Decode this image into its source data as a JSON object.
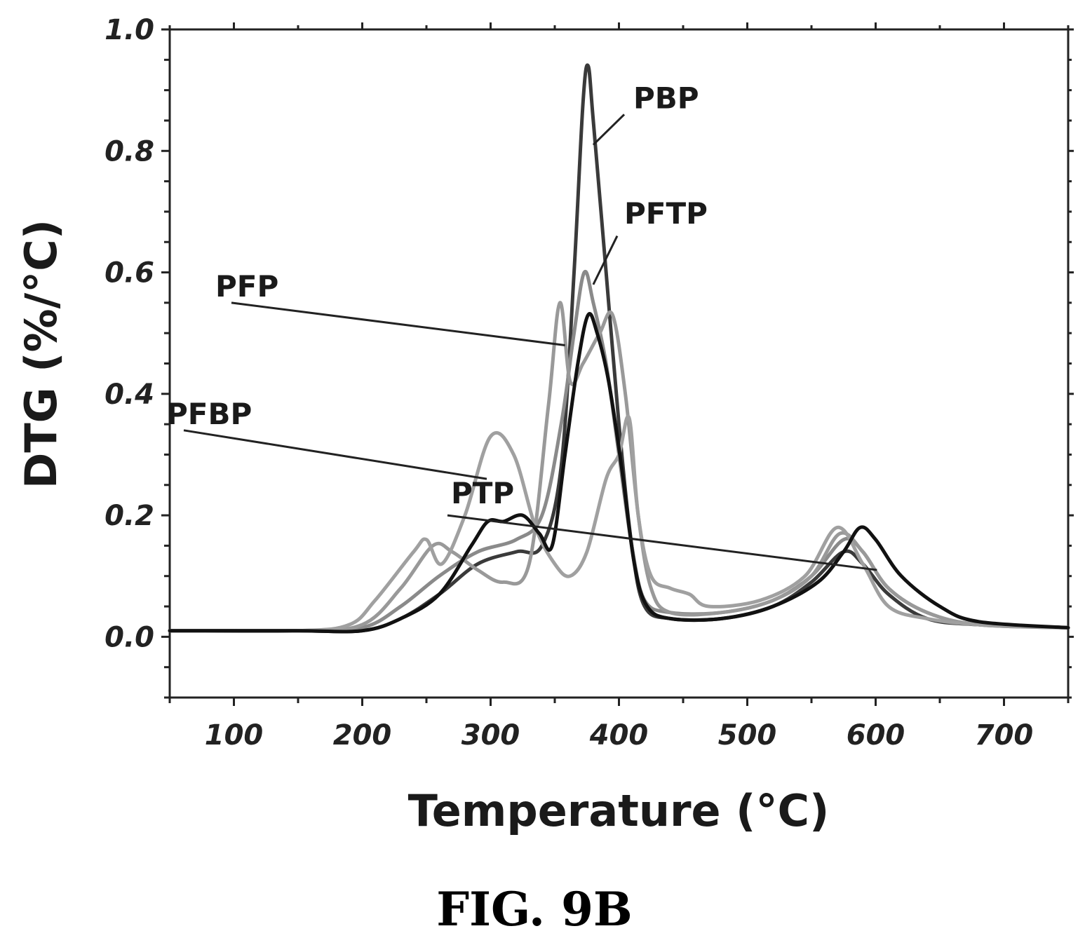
{
  "chart_data": {
    "type": "line",
    "xlabel": "Temperature (°C)",
    "ylabel": "DTG (%/°C)",
    "xlim": [
      50,
      750
    ],
    "ylim": [
      -0.1,
      1.0
    ],
    "x_ticks": [
      100,
      200,
      300,
      400,
      500,
      600,
      700
    ],
    "y_ticks": [
      0.0,
      0.2,
      0.4,
      0.6,
      0.8,
      1.0
    ],
    "x_tick_labels": [
      "100",
      "200",
      "300",
      "400",
      "500",
      "600",
      "700"
    ],
    "y_tick_labels": [
      "0.0",
      "0.2",
      "0.4",
      "0.6",
      "0.8",
      "1.0"
    ],
    "grid": false,
    "legend": "none",
    "series": [
      {
        "name": "PBP",
        "color": "#3a3a3a",
        "points": [
          [
            50,
            0.01
          ],
          [
            150,
            0.01
          ],
          [
            200,
            0.01
          ],
          [
            230,
            0.03
          ],
          [
            260,
            0.07
          ],
          [
            290,
            0.12
          ],
          [
            320,
            0.14
          ],
          [
            340,
            0.15
          ],
          [
            355,
            0.28
          ],
          [
            365,
            0.6
          ],
          [
            372,
            0.88
          ],
          [
            376,
            0.94
          ],
          [
            380,
            0.85
          ],
          [
            390,
            0.6
          ],
          [
            400,
            0.35
          ],
          [
            410,
            0.15
          ],
          [
            420,
            0.05
          ],
          [
            440,
            0.03
          ],
          [
            480,
            0.03
          ],
          [
            520,
            0.05
          ],
          [
            550,
            0.09
          ],
          [
            575,
            0.14
          ],
          [
            590,
            0.12
          ],
          [
            610,
            0.07
          ],
          [
            640,
            0.03
          ],
          [
            680,
            0.02
          ],
          [
            750,
            0.015
          ]
        ]
      },
      {
        "name": "PFTP",
        "color": "#8a8a8a",
        "points": [
          [
            50,
            0.01
          ],
          [
            150,
            0.01
          ],
          [
            200,
            0.015
          ],
          [
            230,
            0.05
          ],
          [
            260,
            0.1
          ],
          [
            290,
            0.14
          ],
          [
            320,
            0.16
          ],
          [
            340,
            0.2
          ],
          [
            355,
            0.35
          ],
          [
            365,
            0.5
          ],
          [
            373,
            0.6
          ],
          [
            380,
            0.55
          ],
          [
            390,
            0.45
          ],
          [
            400,
            0.3
          ],
          [
            410,
            0.15
          ],
          [
            420,
            0.06
          ],
          [
            440,
            0.04
          ],
          [
            480,
            0.04
          ],
          [
            520,
            0.06
          ],
          [
            550,
            0.1
          ],
          [
            575,
            0.16
          ],
          [
            590,
            0.14
          ],
          [
            610,
            0.08
          ],
          [
            640,
            0.04
          ],
          [
            680,
            0.02
          ],
          [
            750,
            0.015
          ]
        ]
      },
      {
        "name": "PFP",
        "color": "#999999",
        "points": [
          [
            50,
            0.01
          ],
          [
            150,
            0.01
          ],
          [
            200,
            0.02
          ],
          [
            230,
            0.08
          ],
          [
            255,
            0.15
          ],
          [
            270,
            0.14
          ],
          [
            290,
            0.11
          ],
          [
            310,
            0.09
          ],
          [
            330,
            0.12
          ],
          [
            345,
            0.38
          ],
          [
            354,
            0.55
          ],
          [
            362,
            0.42
          ],
          [
            372,
            0.45
          ],
          [
            385,
            0.5
          ],
          [
            395,
            0.53
          ],
          [
            405,
            0.4
          ],
          [
            415,
            0.2
          ],
          [
            425,
            0.08
          ],
          [
            440,
            0.04
          ],
          [
            480,
            0.04
          ],
          [
            520,
            0.06
          ],
          [
            550,
            0.1
          ],
          [
            572,
            0.17
          ],
          [
            590,
            0.14
          ],
          [
            610,
            0.08
          ],
          [
            640,
            0.04
          ],
          [
            680,
            0.02
          ],
          [
            750,
            0.015
          ]
        ]
      },
      {
        "name": "PFBP",
        "color": "#a0a0a0",
        "points": [
          [
            50,
            0.01
          ],
          [
            150,
            0.01
          ],
          [
            190,
            0.02
          ],
          [
            210,
            0.06
          ],
          [
            240,
            0.14
          ],
          [
            250,
            0.16
          ],
          [
            262,
            0.12
          ],
          [
            280,
            0.2
          ],
          [
            300,
            0.33
          ],
          [
            318,
            0.3
          ],
          [
            335,
            0.18
          ],
          [
            350,
            0.12
          ],
          [
            362,
            0.1
          ],
          [
            375,
            0.14
          ],
          [
            390,
            0.26
          ],
          [
            400,
            0.3
          ],
          [
            408,
            0.36
          ],
          [
            415,
            0.2
          ],
          [
            425,
            0.1
          ],
          [
            440,
            0.08
          ],
          [
            455,
            0.07
          ],
          [
            470,
            0.05
          ],
          [
            510,
            0.06
          ],
          [
            545,
            0.1
          ],
          [
            570,
            0.18
          ],
          [
            590,
            0.12
          ],
          [
            610,
            0.05
          ],
          [
            640,
            0.03
          ],
          [
            680,
            0.02
          ],
          [
            750,
            0.015
          ]
        ]
      },
      {
        "name": "PTP",
        "color": "#111111",
        "points": [
          [
            50,
            0.01
          ],
          [
            150,
            0.01
          ],
          [
            200,
            0.01
          ],
          [
            230,
            0.03
          ],
          [
            260,
            0.07
          ],
          [
            285,
            0.15
          ],
          [
            298,
            0.19
          ],
          [
            310,
            0.19
          ],
          [
            325,
            0.2
          ],
          [
            338,
            0.17
          ],
          [
            348,
            0.15
          ],
          [
            358,
            0.3
          ],
          [
            368,
            0.45
          ],
          [
            376,
            0.53
          ],
          [
            383,
            0.5
          ],
          [
            392,
            0.42
          ],
          [
            402,
            0.28
          ],
          [
            412,
            0.12
          ],
          [
            422,
            0.05
          ],
          [
            440,
            0.03
          ],
          [
            480,
            0.03
          ],
          [
            520,
            0.05
          ],
          [
            555,
            0.09
          ],
          [
            575,
            0.14
          ],
          [
            588,
            0.18
          ],
          [
            600,
            0.16
          ],
          [
            620,
            0.1
          ],
          [
            650,
            0.05
          ],
          [
            680,
            0.025
          ],
          [
            750,
            0.015
          ]
        ]
      }
    ],
    "annotations": [
      {
        "label": "PBP",
        "text_at": [
          903,
          0.87
        ],
        "arrow_from": [
          890,
          0.86
        ],
        "arrow_to": [
          380,
          0.81
        ]
      },
      {
        "label": "PFTP",
        "text_at": [
          890,
          0.68
        ],
        "arrow_from": [
          880,
          0.66
        ],
        "arrow_to": [
          380,
          0.58
        ]
      },
      {
        "label": "PFP",
        "text_at": [
          307,
          0.56
        ],
        "arrow_from": [
          330,
          0.55
        ],
        "arrow_to": [
          358,
          0.48
        ]
      },
      {
        "label": "PFBP",
        "text_at": [
          237,
          0.35
        ],
        "arrow_from": [
          262,
          0.34
        ],
        "arrow_to": [
          297,
          0.26
        ]
      },
      {
        "label": "PTP",
        "text_at": [
          643,
          0.22
        ],
        "arrow_from": [
          638,
          0.2
        ],
        "arrow_to": [
          601,
          0.11
        ]
      }
    ]
  },
  "caption": "FIG. 9B"
}
